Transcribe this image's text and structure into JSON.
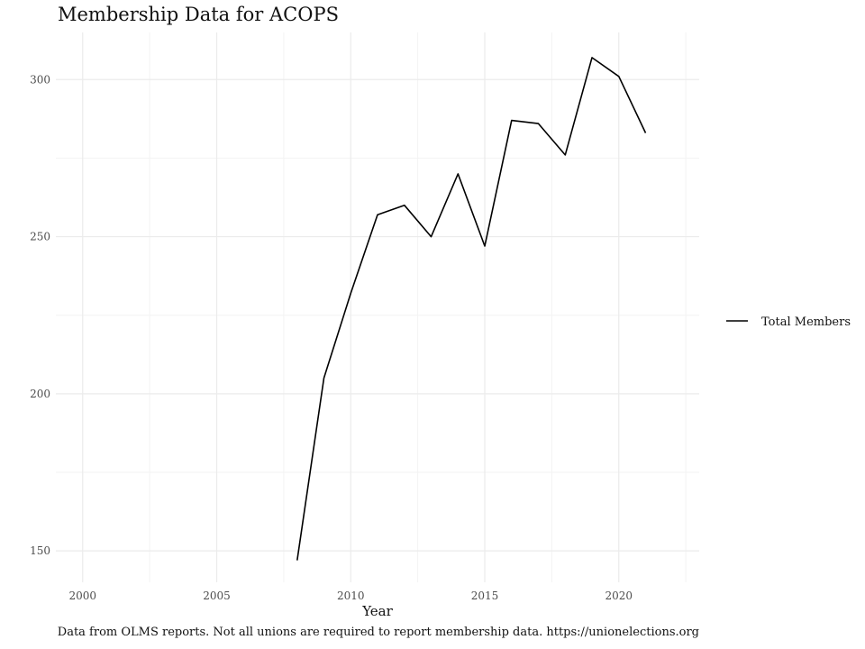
{
  "title": "Membership Data for ACOPS",
  "caption": "Data from OLMS reports. Not all unions are required to report membership data. https://unionelections.org",
  "chart_data": {
    "type": "line",
    "title": "Membership Data for ACOPS",
    "xlabel": "Year",
    "ylabel": "",
    "x_ticks": [
      2000,
      2005,
      2010,
      2015,
      2020
    ],
    "y_ticks": [
      150,
      200,
      250,
      300
    ],
    "xlim": [
      1999,
      2023
    ],
    "ylim": [
      140,
      315
    ],
    "grid": true,
    "legend_position": "right",
    "line_color": "#000000",
    "series": [
      {
        "name": "Total Members",
        "x": [
          2008,
          2009,
          2010,
          2011,
          2012,
          2013,
          2014,
          2015,
          2016,
          2017,
          2018,
          2019,
          2020,
          2021
        ],
        "values": [
          147,
          205,
          232,
          257,
          260,
          250,
          270,
          247,
          287,
          286,
          276,
          307,
          301,
          283
        ]
      }
    ]
  }
}
